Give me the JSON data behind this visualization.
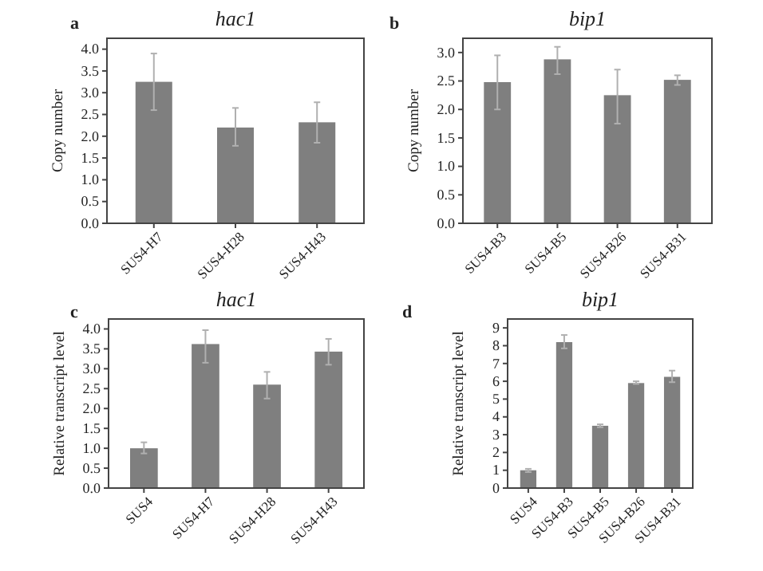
{
  "chart_data": [
    {
      "type": "bar",
      "title": "hac1",
      "annotations": [
        "a"
      ],
      "ylabel": "Copy number",
      "categories": [
        "SUS4-H7",
        "SUS4-H28",
        "SUS4-H43"
      ],
      "values": [
        3.25,
        2.2,
        2.32
      ],
      "errors": [
        [
          2.6,
          3.9
        ],
        [
          1.78,
          2.65
        ],
        [
          1.85,
          2.78
        ]
      ],
      "color": "#7f7f7f",
      "ylim": [
        0,
        4.25
      ],
      "yticks": [
        {
          "value": 0,
          "label": "0.0"
        },
        {
          "value": 0.5,
          "label": "0.5"
        },
        {
          "value": 1,
          "label": "1.0"
        },
        {
          "value": 1.5,
          "label": "1.5"
        },
        {
          "value": 2,
          "label": "2.0"
        },
        {
          "value": 2.5,
          "label": "2.5"
        },
        {
          "value": 3,
          "label": "3.0"
        },
        {
          "value": 3.5,
          "label": "3.5"
        },
        {
          "value": 4,
          "label": "4.0"
        }
      ],
      "grid": false
    },
    {
      "type": "bar",
      "title": "bip1",
      "annotations": [
        "b"
      ],
      "ylabel": "Copy number",
      "categories": [
        "SUS4-B3",
        "SUS4-B5",
        "SUS4-B26",
        "SUS4-B31"
      ],
      "values": [
        2.48,
        2.88,
        2.25,
        2.52
      ],
      "errors": [
        [
          2.0,
          2.95
        ],
        [
          2.62,
          3.1
        ],
        [
          1.75,
          2.7
        ],
        [
          2.43,
          2.6
        ]
      ],
      "color": "#7f7f7f",
      "ylim": [
        0,
        3.25
      ],
      "yticks": [
        {
          "value": 0,
          "label": "0.0"
        },
        {
          "value": 0.5,
          "label": "0.5"
        },
        {
          "value": 1,
          "label": "1.0"
        },
        {
          "value": 1.5,
          "label": "1.5"
        },
        {
          "value": 2,
          "label": "2.0"
        },
        {
          "value": 2.5,
          "label": "2.5"
        },
        {
          "value": 3,
          "label": "3.0"
        }
      ],
      "grid": false
    },
    {
      "type": "bar",
      "title": "hac1",
      "annotations": [
        "c"
      ],
      "ylabel": "Relative transcript level",
      "categories": [
        "SUS4",
        "SUS4-H7",
        "SUS4-H28",
        "SUS4-H43"
      ],
      "values": [
        1.0,
        3.62,
        2.6,
        3.43
      ],
      "errors": [
        [
          0.87,
          1.15
        ],
        [
          3.15,
          3.97
        ],
        [
          2.25,
          2.92
        ],
        [
          3.1,
          3.75
        ]
      ],
      "color": "#7f7f7f",
      "ylim": [
        0,
        4.25
      ],
      "yticks": [
        {
          "value": 0,
          "label": "0.0"
        },
        {
          "value": 0.5,
          "label": "0.5"
        },
        {
          "value": 1,
          "label": "1.0"
        },
        {
          "value": 1.5,
          "label": "1.5"
        },
        {
          "value": 2,
          "label": "2.0"
        },
        {
          "value": 2.5,
          "label": "2.5"
        },
        {
          "value": 3,
          "label": "3.0"
        },
        {
          "value": 3.5,
          "label": "3.5"
        },
        {
          "value": 4,
          "label": "4.0"
        }
      ],
      "grid": false
    },
    {
      "type": "bar",
      "title": "bip1",
      "annotations": [
        "d"
      ],
      "ylabel": "Relative transcript level",
      "categories": [
        "SUS4",
        "SUS4-B3",
        "SUS4-B5",
        "SUS4-B26",
        "SUS4-B31"
      ],
      "values": [
        1.0,
        8.2,
        3.5,
        5.9,
        6.25
      ],
      "errors": [
        [
          0.9,
          1.08
        ],
        [
          7.85,
          8.6
        ],
        [
          3.42,
          3.58
        ],
        [
          5.85,
          6.0
        ],
        [
          5.95,
          6.6
        ]
      ],
      "color": "#7f7f7f",
      "ylim": [
        0,
        9.5
      ],
      "yticks": [
        0,
        1,
        2,
        3,
        4,
        5,
        6,
        7,
        8,
        9
      ],
      "grid": false
    }
  ]
}
